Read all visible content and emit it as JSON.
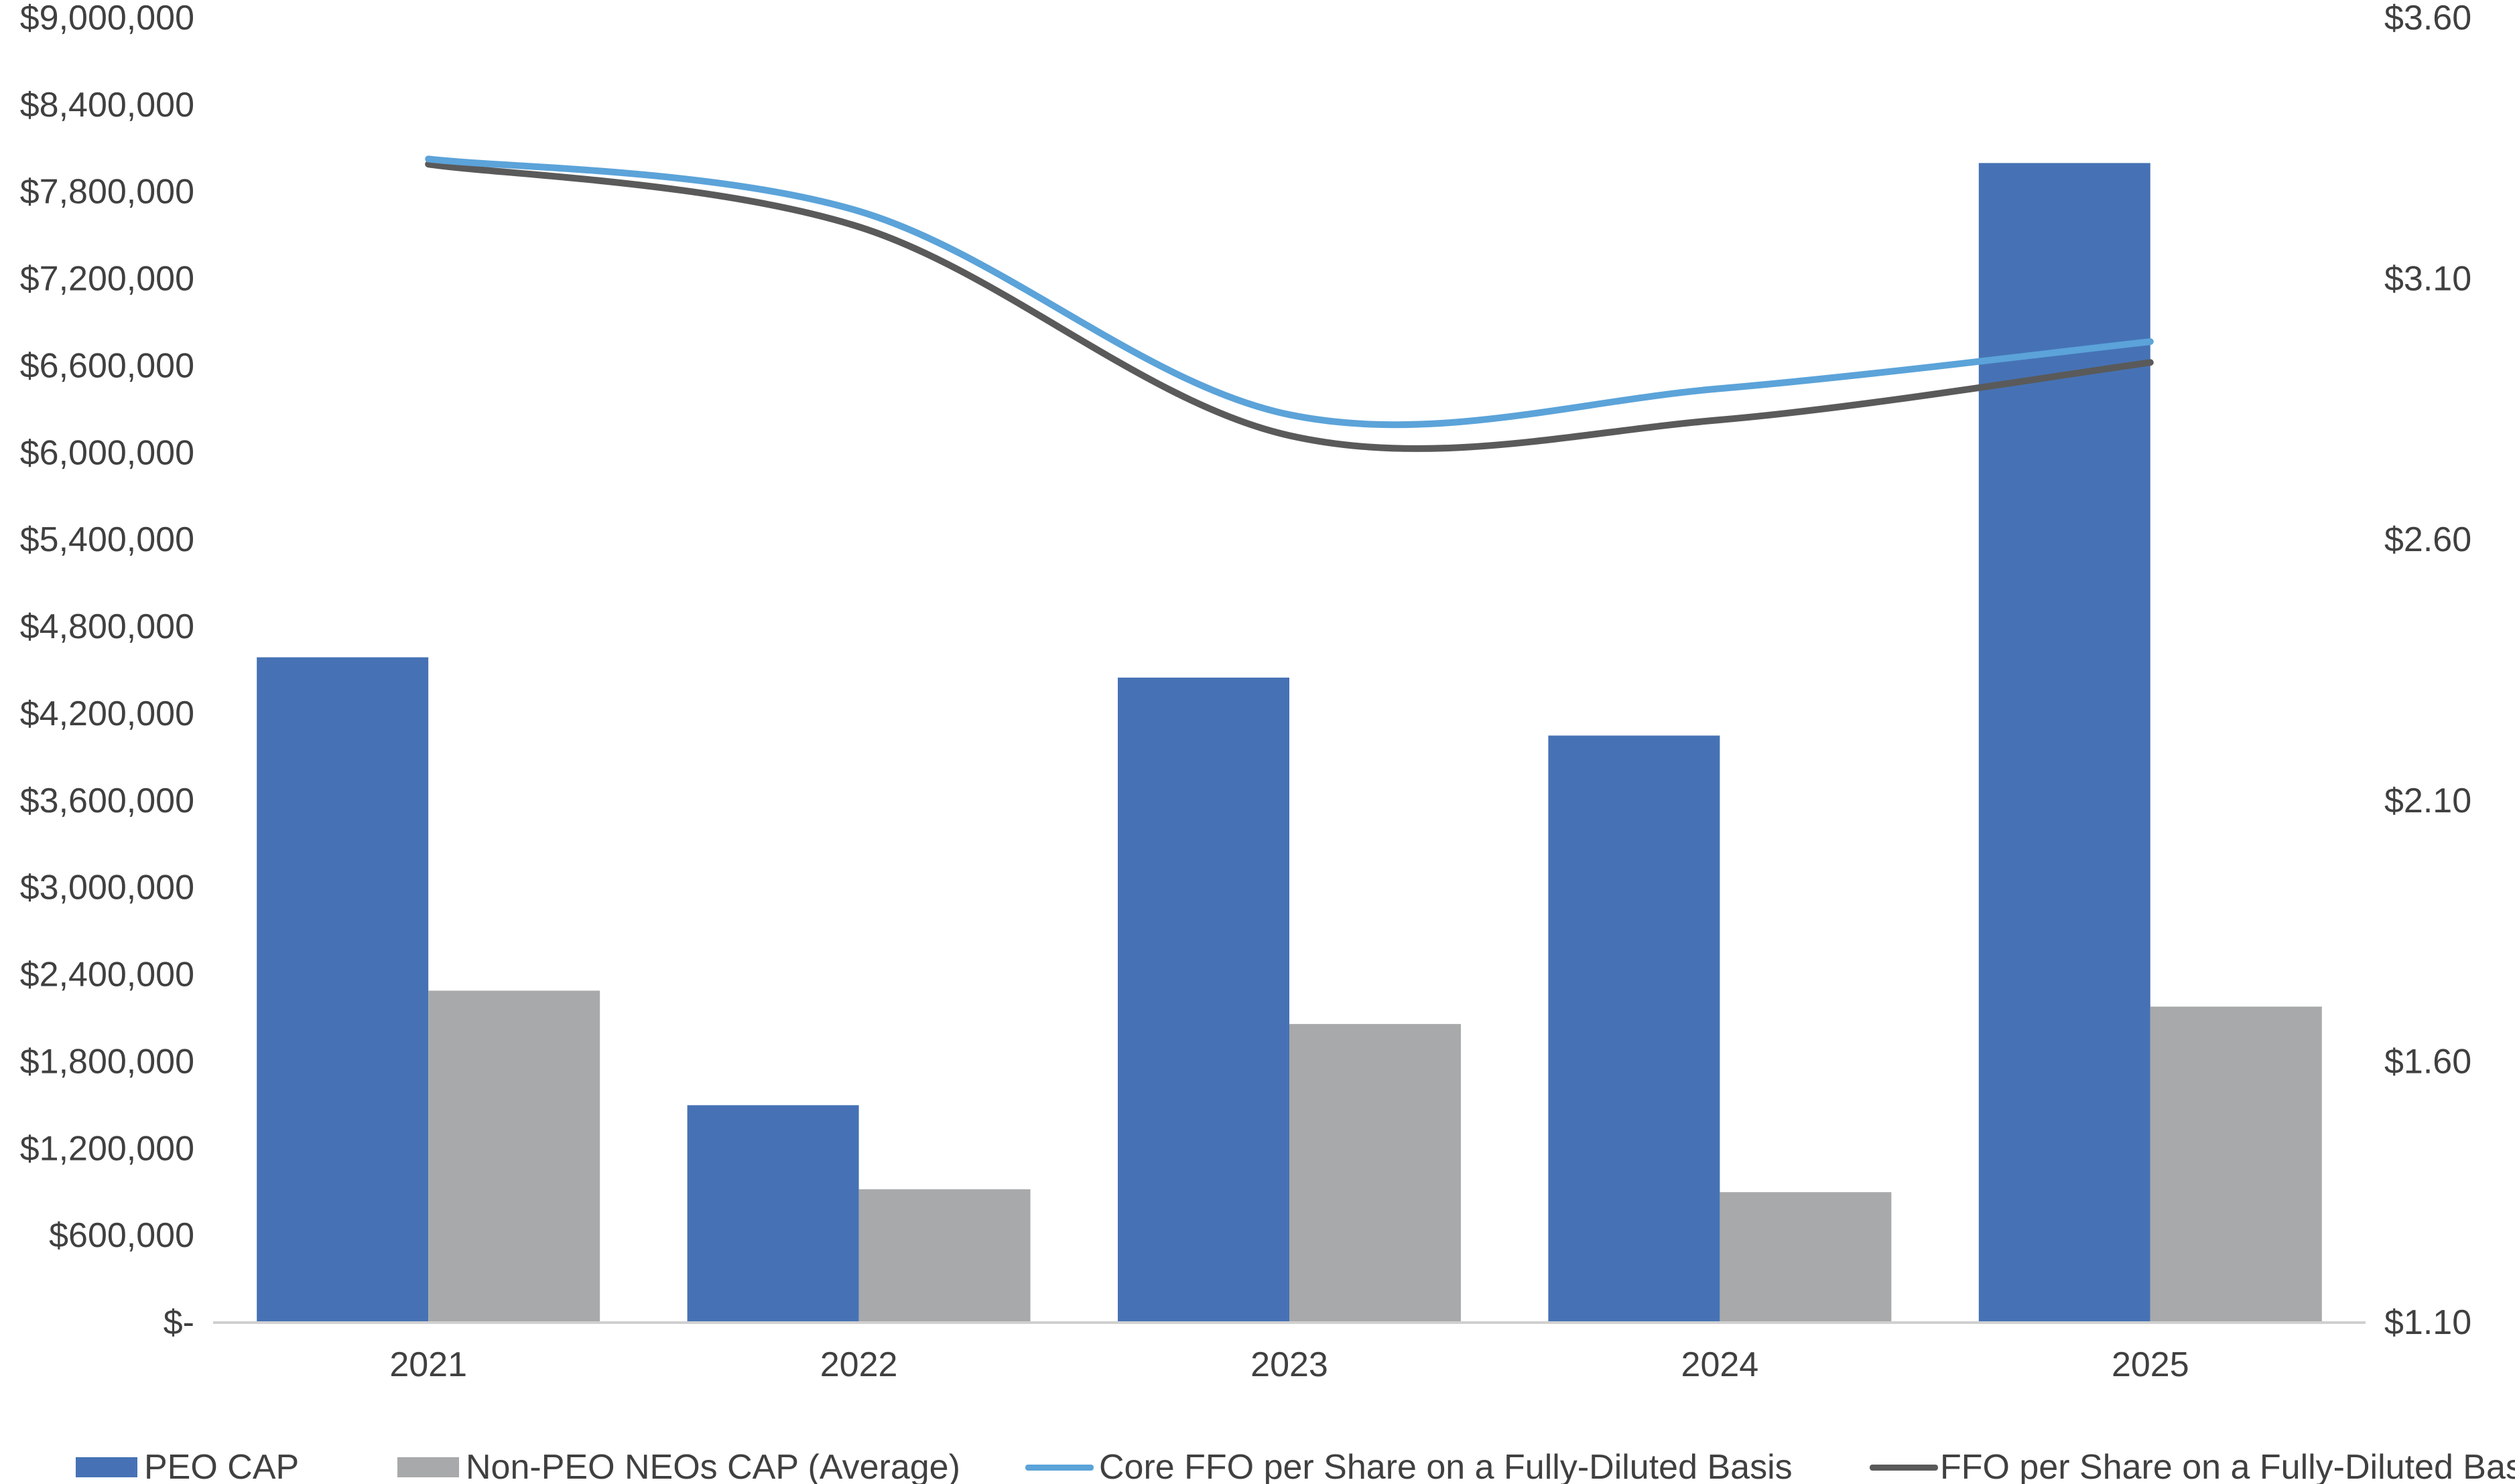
{
  "chart_data": {
    "type": "bar",
    "title": "",
    "xlabel": "",
    "ylabel": "",
    "y2label": "",
    "categories": [
      "2021",
      "2022",
      "2023",
      "2024",
      "2025"
    ],
    "ylim": [
      0,
      9000000
    ],
    "y2lim": [
      1.1,
      3.6
    ],
    "y_ticks": [
      0,
      600000,
      1200000,
      1800000,
      2400000,
      3000000,
      3600000,
      4200000,
      4800000,
      5400000,
      6000000,
      6600000,
      7200000,
      7800000,
      8400000,
      9000000
    ],
    "y_tick_labels": [
      "$-",
      "$600,000",
      "$1,200,000",
      "$1,800,000",
      "$2,400,000",
      "$3,000,000",
      "$3,600,000",
      "$4,200,000",
      "$4,800,000",
      "$5,400,000",
      "$6,000,000",
      "$6,600,000",
      "$7,200,000",
      "$7,800,000",
      "$8,400,000",
      "$9,000,000"
    ],
    "y2_ticks": [
      1.1,
      1.6,
      2.1,
      2.6,
      3.1,
      3.6
    ],
    "y2_tick_labels": [
      "$1.10",
      "$1.60",
      "$2.10",
      "$2.60",
      "$3.10",
      "$3.60"
    ],
    "bar_series": [
      {
        "name": "PEO CAP",
        "color": "#4672B5",
        "values": [
          4590000,
          1500000,
          4450000,
          4050000,
          8000000
        ]
      },
      {
        "name": "Non-PEO NEOs CAP (Average)",
        "color": "#A7A9AA",
        "values": [
          2290000,
          920000,
          2060000,
          900000,
          2180000
        ]
      }
    ],
    "line_series": [
      {
        "name": "Core FFO per Share on a Fully-Diluted Basis",
        "color": "#5BA3D9",
        "axis": "right",
        "values": [
          3.33,
          3.23,
          2.84,
          2.89,
          2.98
        ]
      },
      {
        "name": "FFO per Share on a Fully-Diluted Basis",
        "color": "#5A5A5A",
        "axis": "right",
        "values": [
          3.32,
          3.2,
          2.8,
          2.83,
          2.94
        ]
      }
    ],
    "grid": false,
    "legend_position": "bottom"
  }
}
